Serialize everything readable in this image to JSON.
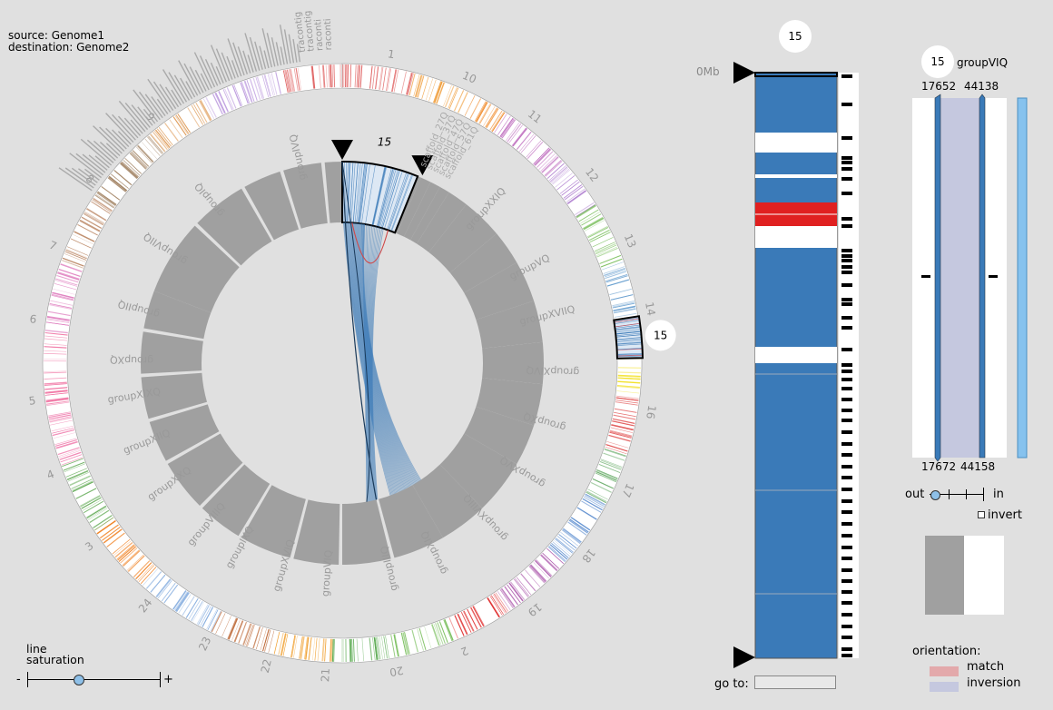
{
  "genome_info": {
    "source": "source: Genome1",
    "destination": "destination: Genome2"
  },
  "outer_ring_labels": [
    "1",
    "10",
    "11",
    "12",
    "13",
    "14",
    "16",
    "17",
    "18",
    "19",
    "2",
    "20",
    "21",
    "22",
    "23",
    "24",
    "3",
    "4",
    "5",
    "6",
    "7",
    "8",
    "9"
  ],
  "outer_selected_badge": "15",
  "inner_selected_label": "15",
  "inner_ring_labels": [
    "groupIVQ",
    "groupIQ",
    "groupVIIQ",
    "groupIIQ",
    "groupXQ",
    "groupXIXQ",
    "groupXIIQ",
    "groupXXQ",
    "groupVIIIQ",
    "groupIXQ",
    "groupXVIQ",
    "groupVIQ",
    "groupIIIQ",
    "groupXIQ",
    "groupXVIIIQ",
    "groupXVQ",
    "groupXQ",
    "groupXIVQ",
    "groupXVIIQ",
    "groupVQ",
    "groupXXIQ"
  ],
  "scaffold_labels": [
    "scaffold_27Q",
    "scaffold_37Q",
    "scaffold_47Q",
    "scaffold_57Q",
    "scaffold_61Q"
  ],
  "top_label_fragments": [
    "raconti",
    "raconti",
    "tracontig",
    "tracontig"
  ],
  "line_saturation": {
    "label_line1": "line",
    "label_line2": "saturation",
    "min": "-",
    "max": "+",
    "value": 0.39
  },
  "chromosome_view": {
    "badge": "15",
    "axis_start": "0Mb",
    "goto_label": "go to:",
    "goto_value": ""
  },
  "detail_view": {
    "badge": "15",
    "group": "groupVIQ",
    "top_start": "17652",
    "top_end": "44138",
    "bottom_start": "17672",
    "bottom_end": "44158",
    "zoom_out": "out",
    "zoom_in": "in",
    "zoom_level": 0.1,
    "invert_label": "invert",
    "invert_checked": false
  },
  "orientation_legend": {
    "title": "orientation:",
    "match": "match",
    "inversion": "inversion"
  },
  "colors": {
    "background": "#e0e0e0",
    "block": "#3a7ab8",
    "highlight": "#e02020",
    "match": "#e3a9ab",
    "inversion": "#c5c8df",
    "ring_gray": "#a0a0a0"
  }
}
